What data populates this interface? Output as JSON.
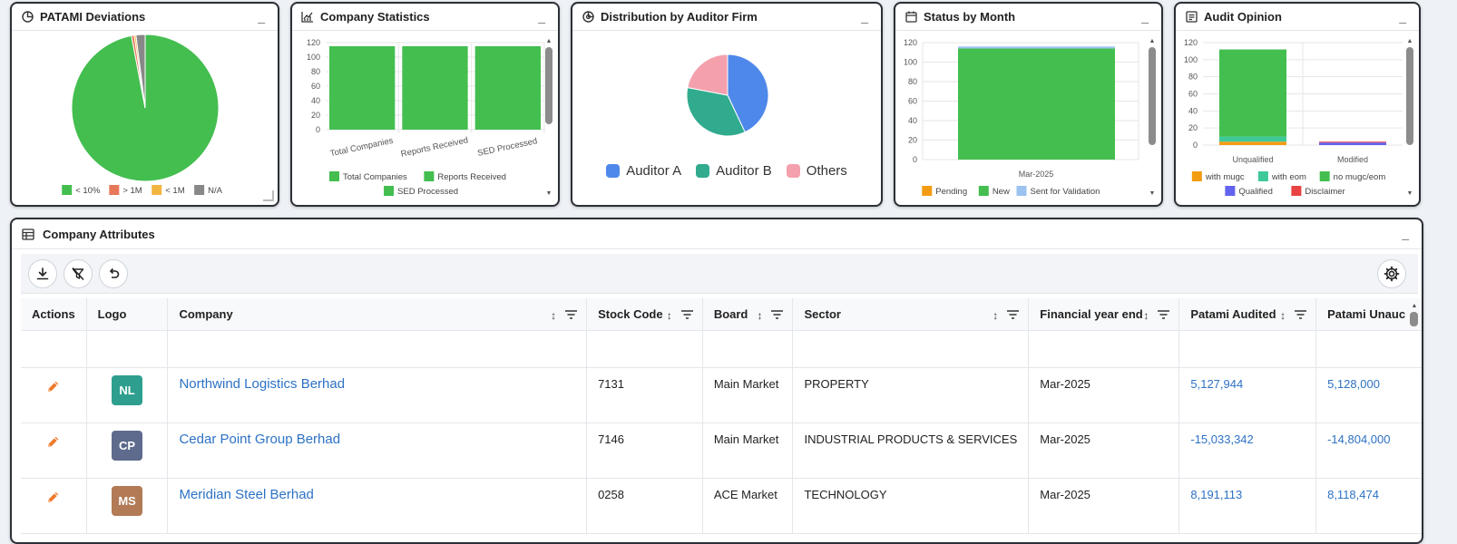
{
  "panels": {
    "patami": {
      "title": "PATAMI Deviations",
      "legend": [
        "< 10%",
        "> 1M",
        "< 1M",
        "N/A"
      ],
      "colors": [
        "#43be4f",
        "#e8785a",
        "#f2b540",
        "#888888"
      ]
    },
    "stats": {
      "title": "Company Statistics",
      "legend": [
        "Total Companies",
        "Reports Received",
        "SED Processed"
      ],
      "color": "#43be4f"
    },
    "auditor": {
      "title": "Distribution by Auditor Firm",
      "legend": [
        "Auditor A",
        "Auditor B",
        "Others"
      ],
      "colors": [
        "#4e88ea",
        "#30ab8e",
        "#f4a0ad"
      ]
    },
    "status": {
      "title": "Status by Month",
      "legend": [
        "Pending",
        "New",
        "Sent for Validation"
      ],
      "colors": [
        "#f39c12",
        "#43be4f",
        "#9cc3f0"
      ]
    },
    "opinion": {
      "title": "Audit Opinion",
      "legend": [
        "with mugc",
        "with eom",
        "no mugc/eom",
        "Qualified",
        "Disclaimer"
      ],
      "colors": [
        "#f39c12",
        "#3ec99a",
        "#43be4f",
        "#6363f0",
        "#e84242"
      ]
    },
    "attributes": {
      "title": "Company Attributes",
      "minimize": "_"
    }
  },
  "chart_data": [
    {
      "type": "pie",
      "title": "PATAMI Deviations",
      "categories": [
        "< 10%",
        "> 1M",
        "< 1M",
        "N/A"
      ],
      "values": [
        97,
        0.6,
        0.4,
        2
      ]
    },
    {
      "type": "bar",
      "title": "Company Statistics",
      "categories": [
        "Total Companies",
        "Reports Received",
        "SED Processed"
      ],
      "series": [
        {
          "name": "Total Companies",
          "values": [
            115,
            115,
            115
          ]
        }
      ],
      "ylim": [
        0,
        120
      ],
      "yticks": [
        0,
        20,
        40,
        60,
        80,
        100,
        120
      ]
    },
    {
      "type": "pie",
      "title": "Distribution by Auditor Firm",
      "categories": [
        "Auditor A",
        "Auditor B",
        "Others"
      ],
      "values": [
        43,
        35,
        22
      ]
    },
    {
      "type": "bar",
      "title": "Status by Month",
      "categories": [
        "Mar-2025"
      ],
      "series": [
        {
          "name": "Pending",
          "values": [
            0
          ]
        },
        {
          "name": "New",
          "values": [
            114
          ]
        },
        {
          "name": "Sent for Validation",
          "values": [
            2
          ]
        }
      ],
      "ylim": [
        0,
        120
      ],
      "yticks": [
        0,
        20,
        40,
        60,
        80,
        100,
        120
      ]
    },
    {
      "type": "bar",
      "title": "Audit Opinion",
      "categories": [
        "Unqualified",
        "Modified"
      ],
      "series": [
        {
          "name": "with mugc",
          "values": [
            4,
            0
          ]
        },
        {
          "name": "with eom",
          "values": [
            6,
            0
          ]
        },
        {
          "name": "no mugc/eom",
          "values": [
            102,
            0
          ]
        },
        {
          "name": "Qualified",
          "values": [
            0,
            3
          ]
        },
        {
          "name": "Disclaimer",
          "values": [
            0,
            1
          ]
        }
      ],
      "ylim": [
        0,
        120
      ],
      "yticks": [
        0,
        20,
        40,
        60,
        80,
        100,
        120
      ]
    }
  ],
  "table": {
    "columns": [
      "Actions",
      "Logo",
      "Company",
      "Stock Code",
      "Board",
      "Sector",
      "Financial year end",
      "Patami Audited",
      "Patami Unauc"
    ],
    "rows": [
      {
        "initials": "NL",
        "badge": "#2e9e8e",
        "company": "Northwind Logistics Berhad",
        "code": "7131",
        "board": "Main Market",
        "sector": "PROPERTY",
        "fye": "Mar-2025",
        "audited": "5,127,944",
        "unaudited": "5,128,000"
      },
      {
        "initials": "CP",
        "badge": "#5e6b8c",
        "company": "Cedar Point Group Berhad",
        "code": "7146",
        "board": "Main Market",
        "sector": "INDUSTRIAL PRODUCTS & SERVICES",
        "fye": "Mar-2025",
        "audited": "-15,033,342",
        "unaudited": "-14,804,000"
      },
      {
        "initials": "MS",
        "badge": "#b27a55",
        "company": "Meridian Steel Berhad",
        "code": "0258",
        "board": "ACE Market",
        "sector": "TECHNOLOGY",
        "fye": "Mar-2025",
        "audited": "8,191,113",
        "unaudited": "8,118,474"
      }
    ]
  }
}
